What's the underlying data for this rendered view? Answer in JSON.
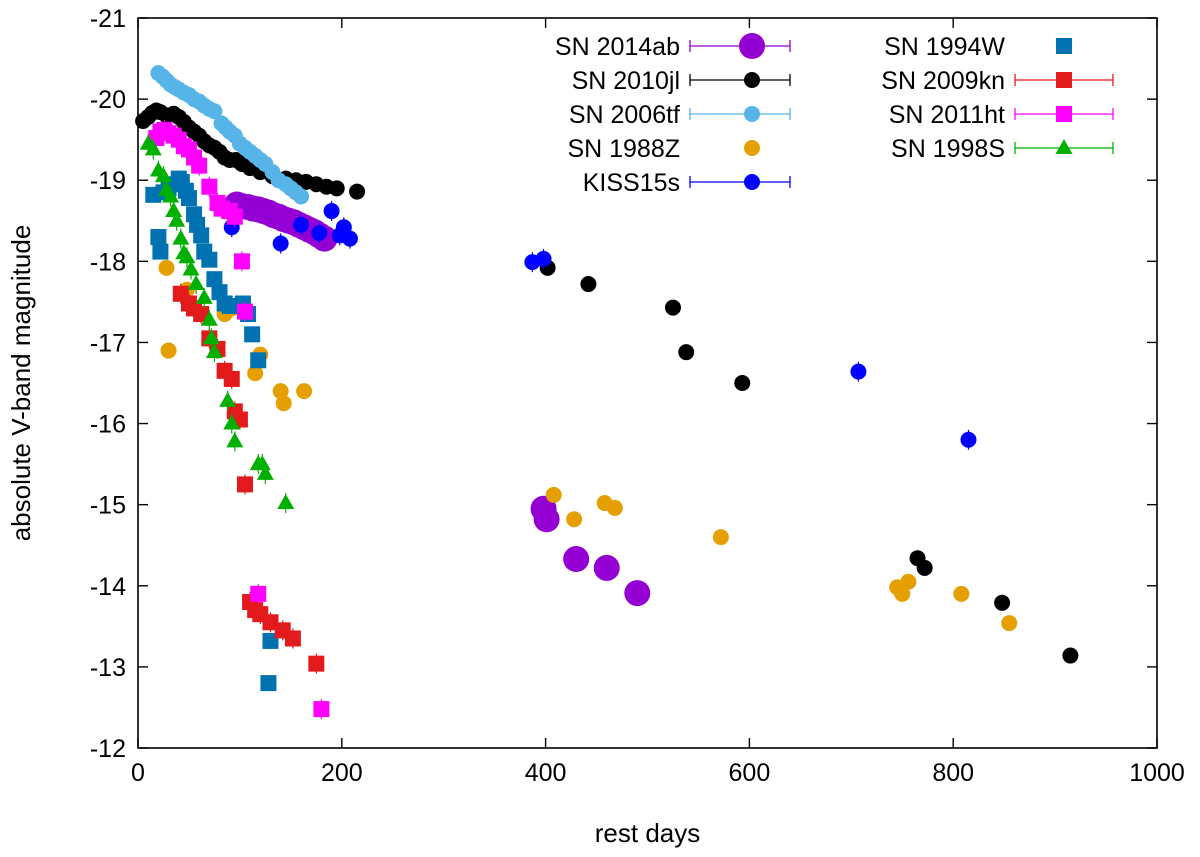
{
  "chart_data": {
    "type": "scatter",
    "title": "",
    "xlabel": "rest days",
    "ylabel": "absolute V-band magnitude",
    "xlim": [
      0,
      1000
    ],
    "ylim": [
      -21,
      -12
    ],
    "y_inverted": true,
    "grid": false,
    "legend_position": "top-right, two columns",
    "x_ticks": [
      0,
      200,
      400,
      600,
      800,
      1000
    ],
    "y_ticks": [
      -21,
      -20,
      -19,
      -18,
      -17,
      -16,
      -15,
      -14,
      -13,
      -12
    ],
    "x_tick_labels": [
      "0",
      "200",
      "400",
      "600",
      "800",
      "1000"
    ],
    "y_tick_labels": [
      "-21",
      "-20",
      "-19",
      "-18",
      "-17",
      "-16",
      "-15",
      "-14",
      "-13",
      "-12"
    ],
    "series": [
      {
        "name": "SN 2014ab",
        "color": "#9400d3",
        "marker": "circle-large",
        "points": [
          [
            97,
            -18.7
          ],
          [
            102,
            -18.68
          ],
          [
            108,
            -18.67
          ],
          [
            113,
            -18.65
          ],
          [
            118,
            -18.64
          ],
          [
            123,
            -18.62
          ],
          [
            128,
            -18.6
          ],
          [
            133,
            -18.57
          ],
          [
            138,
            -18.55
          ],
          [
            143,
            -18.52
          ],
          [
            148,
            -18.5
          ],
          [
            153,
            -18.48
          ],
          [
            158,
            -18.45
          ],
          [
            163,
            -18.42
          ],
          [
            168,
            -18.39
          ],
          [
            173,
            -18.36
          ],
          [
            178,
            -18.32
          ],
          [
            183,
            -18.28
          ],
          [
            398,
            -14.95
          ],
          [
            401,
            -14.82
          ],
          [
            430,
            -14.33
          ],
          [
            460,
            -14.22
          ],
          [
            490,
            -13.91
          ]
        ]
      },
      {
        "name": "SN 2010jl",
        "color": "#000000",
        "marker": "circle",
        "points": [
          [
            5,
            -19.73
          ],
          [
            10,
            -19.78
          ],
          [
            14,
            -19.83
          ],
          [
            18,
            -19.86
          ],
          [
            22,
            -19.84
          ],
          [
            28,
            -19.8
          ],
          [
            35,
            -19.82
          ],
          [
            40,
            -19.78
          ],
          [
            45,
            -19.72
          ],
          [
            50,
            -19.65
          ],
          [
            55,
            -19.6
          ],
          [
            60,
            -19.55
          ],
          [
            65,
            -19.48
          ],
          [
            70,
            -19.43
          ],
          [
            75,
            -19.4
          ],
          [
            80,
            -19.35
          ],
          [
            85,
            -19.28
          ],
          [
            90,
            -19.25
          ],
          [
            96,
            -19.25
          ],
          [
            102,
            -19.2
          ],
          [
            110,
            -19.15
          ],
          [
            120,
            -19.1
          ],
          [
            132,
            -19.05
          ],
          [
            145,
            -19.02
          ],
          [
            155,
            -19.0
          ],
          [
            165,
            -18.98
          ],
          [
            175,
            -18.95
          ],
          [
            185,
            -18.92
          ],
          [
            195,
            -18.9
          ],
          [
            215,
            -18.86
          ],
          [
            402,
            -17.92
          ],
          [
            442,
            -17.72
          ],
          [
            525,
            -17.43
          ],
          [
            538,
            -16.88
          ],
          [
            593,
            -16.5
          ],
          [
            765,
            -14.34
          ],
          [
            772,
            -14.22
          ],
          [
            848,
            -13.79
          ],
          [
            915,
            -13.14
          ]
        ]
      },
      {
        "name": "SN 2006tf",
        "color": "#56b4e9",
        "marker": "circle",
        "points": [
          [
            20,
            -20.32
          ],
          [
            24,
            -20.28
          ],
          [
            28,
            -20.23
          ],
          [
            32,
            -20.18
          ],
          [
            36,
            -20.15
          ],
          [
            40,
            -20.12
          ],
          [
            45,
            -20.08
          ],
          [
            50,
            -20.05
          ],
          [
            55,
            -20.0
          ],
          [
            60,
            -19.97
          ],
          [
            65,
            -19.92
          ],
          [
            70,
            -19.88
          ],
          [
            75,
            -19.85
          ],
          [
            82,
            -19.7
          ],
          [
            86,
            -19.65
          ],
          [
            90,
            -19.6
          ],
          [
            95,
            -19.55
          ],
          [
            100,
            -19.45
          ],
          [
            105,
            -19.4
          ],
          [
            110,
            -19.35
          ],
          [
            115,
            -19.3
          ],
          [
            120,
            -19.25
          ],
          [
            125,
            -19.2
          ],
          [
            132,
            -19.1
          ],
          [
            138,
            -19.0
          ],
          [
            145,
            -18.95
          ],
          [
            150,
            -18.9
          ],
          [
            155,
            -18.85
          ],
          [
            160,
            -18.8
          ]
        ]
      },
      {
        "name": "SN 1988Z",
        "color": "#e69f00",
        "marker": "circle",
        "points": [
          [
            28,
            -17.92
          ],
          [
            30,
            -16.9
          ],
          [
            48,
            -17.65
          ],
          [
            85,
            -17.35
          ],
          [
            92,
            -17.42
          ],
          [
            115,
            -16.62
          ],
          [
            120,
            -16.85
          ],
          [
            140,
            -16.4
          ],
          [
            143,
            -16.25
          ],
          [
            163,
            -16.4
          ],
          [
            408,
            -15.12
          ],
          [
            428,
            -14.82
          ],
          [
            458,
            -15.02
          ],
          [
            468,
            -14.96
          ],
          [
            572,
            -14.6
          ],
          [
            745,
            -13.98
          ],
          [
            750,
            -13.9
          ],
          [
            756,
            -14.05
          ],
          [
            808,
            -13.9
          ],
          [
            855,
            -13.54
          ]
        ]
      },
      {
        "name": "KISS15s",
        "color": "#0000ff",
        "marker": "circle",
        "errorbars": true,
        "points": [
          [
            387,
            -17.99
          ],
          [
            398,
            -18.03
          ],
          [
            92,
            -18.42
          ],
          [
            140,
            -18.22
          ],
          [
            160,
            -18.45
          ],
          [
            178,
            -18.35
          ],
          [
            190,
            -18.62
          ],
          [
            198,
            -18.32
          ],
          [
            202,
            -18.42
          ],
          [
            208,
            -18.28
          ],
          [
            707,
            -16.64
          ],
          [
            815,
            -15.8
          ]
        ]
      },
      {
        "name": "SN 1994W",
        "color": "#0072b2",
        "marker": "square",
        "points": [
          [
            15,
            -18.82
          ],
          [
            20,
            -18.3
          ],
          [
            22,
            -18.12
          ],
          [
            25,
            -18.85
          ],
          [
            30,
            -18.9
          ],
          [
            35,
            -18.95
          ],
          [
            40,
            -19.02
          ],
          [
            43,
            -18.98
          ],
          [
            47,
            -18.87
          ],
          [
            50,
            -18.78
          ],
          [
            55,
            -18.58
          ],
          [
            58,
            -18.45
          ],
          [
            62,
            -18.32
          ],
          [
            65,
            -18.12
          ],
          [
            70,
            -18.02
          ],
          [
            75,
            -17.78
          ],
          [
            80,
            -17.62
          ],
          [
            85,
            -17.48
          ],
          [
            90,
            -17.45
          ],
          [
            103,
            -17.48
          ],
          [
            108,
            -17.35
          ],
          [
            112,
            -17.1
          ],
          [
            118,
            -16.78
          ],
          [
            128,
            -12.8
          ],
          [
            130,
            -13.32
          ]
        ]
      },
      {
        "name": "SN 2009kn",
        "color": "#e31a1c",
        "marker": "square",
        "errorbars": true,
        "points": [
          [
            42,
            -17.6
          ],
          [
            50,
            -17.48
          ],
          [
            55,
            -17.42
          ],
          [
            62,
            -17.35
          ],
          [
            70,
            -17.05
          ],
          [
            78,
            -16.92
          ],
          [
            85,
            -16.65
          ],
          [
            92,
            -16.55
          ],
          [
            95,
            -16.15
          ],
          [
            100,
            -16.05
          ],
          [
            105,
            -15.25
          ],
          [
            110,
            -13.8
          ],
          [
            115,
            -13.7
          ],
          [
            120,
            -13.65
          ],
          [
            130,
            -13.55
          ],
          [
            142,
            -13.45
          ],
          [
            152,
            -13.35
          ],
          [
            175,
            -13.04
          ]
        ]
      },
      {
        "name": "SN 2011ht",
        "color": "#ff00ff",
        "marker": "square",
        "errorbars": true,
        "points": [
          [
            18,
            -19.52
          ],
          [
            22,
            -19.6
          ],
          [
            26,
            -19.62
          ],
          [
            30,
            -19.58
          ],
          [
            35,
            -19.55
          ],
          [
            40,
            -19.5
          ],
          [
            45,
            -19.42
          ],
          [
            50,
            -19.38
          ],
          [
            55,
            -19.28
          ],
          [
            60,
            -19.18
          ],
          [
            70,
            -18.92
          ],
          [
            78,
            -18.72
          ],
          [
            82,
            -18.65
          ],
          [
            90,
            -18.62
          ],
          [
            95,
            -18.55
          ],
          [
            102,
            -18.0
          ],
          [
            105,
            -17.38
          ],
          [
            118,
            -13.9
          ],
          [
            180,
            -12.48
          ]
        ]
      },
      {
        "name": "SN 1998S",
        "color": "#00b000",
        "marker": "triangle",
        "errorbars": true,
        "points": [
          [
            10,
            -19.45
          ],
          [
            15,
            -19.38
          ],
          [
            20,
            -19.12
          ],
          [
            25,
            -19.05
          ],
          [
            28,
            -18.88
          ],
          [
            32,
            -18.8
          ],
          [
            35,
            -18.62
          ],
          [
            38,
            -18.5
          ],
          [
            42,
            -18.28
          ],
          [
            45,
            -18.1
          ],
          [
            48,
            -18.05
          ],
          [
            52,
            -17.9
          ],
          [
            57,
            -17.72
          ],
          [
            65,
            -17.55
          ],
          [
            70,
            -17.28
          ],
          [
            72,
            -17.05
          ],
          [
            75,
            -16.88
          ],
          [
            88,
            -16.28
          ],
          [
            92,
            -16.0
          ],
          [
            95,
            -15.78
          ],
          [
            118,
            -15.5
          ],
          [
            122,
            -15.5
          ],
          [
            125,
            -15.38
          ],
          [
            145,
            -15.02
          ]
        ]
      }
    ]
  }
}
